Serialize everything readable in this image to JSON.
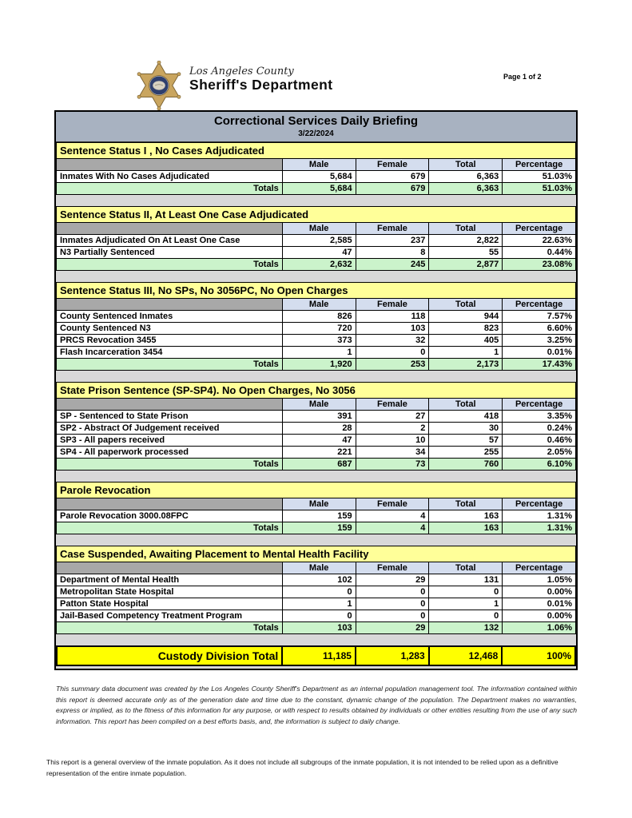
{
  "page": {
    "indicator": "Page 1 of 2"
  },
  "logo": {
    "county": "Los Angeles County",
    "department": "Sheriff's Department"
  },
  "title": {
    "heading": "Correctional Services Daily Briefing",
    "date": "3/22/2024"
  },
  "table_columns": [
    "Male",
    "Female",
    "Total",
    "Percentage"
  ],
  "totals_label": "Totals",
  "sections": [
    {
      "heading": "Sentence Status I , No Cases Adjudicated",
      "rows": [
        {
          "label": "Inmates With No Cases Adjudicated",
          "male": "5,684",
          "female": "679",
          "total": "6,363",
          "percentage": "51.03%"
        }
      ],
      "totals": {
        "male": "5,684",
        "female": "679",
        "total": "6,363",
        "percentage": "51.03%"
      }
    },
    {
      "heading": "Sentence Status II, At Least One Case Adjudicated",
      "rows": [
        {
          "label": "Inmates Adjudicated On At Least One Case",
          "male": "2,585",
          "female": "237",
          "total": "2,822",
          "percentage": "22.63%"
        },
        {
          "label": "N3 Partially Sentenced",
          "male": "47",
          "female": "8",
          "total": "55",
          "percentage": "0.44%"
        }
      ],
      "totals": {
        "male": "2,632",
        "female": "245",
        "total": "2,877",
        "percentage": "23.08%"
      }
    },
    {
      "heading": "Sentence Status III, No SPs, No 3056PC, No Open Charges",
      "rows": [
        {
          "label": "County Sentenced Inmates",
          "male": "826",
          "female": "118",
          "total": "944",
          "percentage": "7.57%"
        },
        {
          "label": "County Sentenced N3",
          "male": "720",
          "female": "103",
          "total": "823",
          "percentage": "6.60%"
        },
        {
          "label": "PRCS Revocation 3455",
          "male": "373",
          "female": "32",
          "total": "405",
          "percentage": "3.25%"
        },
        {
          "label": "Flash Incarceration 3454",
          "male": "1",
          "female": "0",
          "total": "1",
          "percentage": "0.01%"
        }
      ],
      "totals": {
        "male": "1,920",
        "female": "253",
        "total": "2,173",
        "percentage": "17.43%"
      }
    },
    {
      "heading": "State Prison Sentence (SP-SP4). No Open Charges, No 3056",
      "rows": [
        {
          "label": "SP - Sentenced to State Prison",
          "male": "391",
          "female": "27",
          "total": "418",
          "percentage": "3.35%"
        },
        {
          "label": "SP2 - Abstract Of Judgement received",
          "male": "28",
          "female": "2",
          "total": "30",
          "percentage": "0.24%"
        },
        {
          "label": "SP3 - All papers received",
          "male": "47",
          "female": "10",
          "total": "57",
          "percentage": "0.46%"
        },
        {
          "label": "SP4 - All paperwork processed",
          "male": "221",
          "female": "34",
          "total": "255",
          "percentage": "2.05%"
        }
      ],
      "totals": {
        "male": "687",
        "female": "73",
        "total": "760",
        "percentage": "6.10%"
      }
    },
    {
      "heading": "Parole Revocation",
      "rows": [
        {
          "label": "Parole Revocation 3000.08FPC",
          "male": "159",
          "female": "4",
          "total": "163",
          "percentage": "1.31%"
        }
      ],
      "totals": {
        "male": "159",
        "female": "4",
        "total": "163",
        "percentage": "1.31%"
      }
    },
    {
      "heading": "Case Suspended, Awaiting Placement to Mental Health Facility",
      "rows": [
        {
          "label": "Department of Mental Health",
          "male": "102",
          "female": "29",
          "total": "131",
          "percentage": "1.05%"
        },
        {
          "label": "Metropolitan State Hospital",
          "male": "0",
          "female": "0",
          "total": "0",
          "percentage": "0.00%"
        },
        {
          "label": "Patton State Hospital",
          "male": "1",
          "female": "0",
          "total": "1",
          "percentage": "0.01%"
        },
        {
          "label": "Jail-Based Competency Treatment Program",
          "male": "0",
          "female": "0",
          "total": "0",
          "percentage": "0.00%"
        }
      ],
      "totals": {
        "male": "103",
        "female": "29",
        "total": "132",
        "percentage": "1.06%"
      }
    }
  ],
  "grand_total": {
    "label": "Custody Division Total",
    "male": "11,185",
    "female": "1,283",
    "total": "12,468",
    "percentage": "100%"
  },
  "footer": {
    "disclaimer": "This summary data document was created by the Los Angeles County Sheriff's Department as an internal population management tool.  The information contained within this report is deemed accurate only as of the generation date and time due to the constant, dynamic change of the population.  The Department makes no warranties, express or implied, as to the fitness of this information for any purpose, or with respect to results obtained by individuals or other entities resulting from the use of any such information.  This report has been compiled on a best efforts basis, and, the information is subject to daily change.",
    "note": "This report is a general overview of the inmate population.  As it does not include all subgroups of the inmate population, it is not intended to be relied upon as a definitive representation of the entire inmate population."
  },
  "colors": {
    "title_bar": "#a8b2c1",
    "section_header": "#ffff99",
    "column_header": "#d4ddee",
    "label_header": "#a8a8a8",
    "totals_row": "#cbf3cb",
    "grand_total_row": "#ffff00",
    "gap_background": "#d8d8d8"
  }
}
